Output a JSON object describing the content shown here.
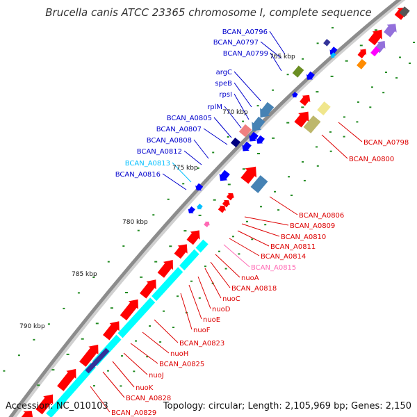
{
  "title": "Brucella canis ATCC 23365 chromosome I, complete sequence",
  "footer": {
    "accession": "Accession: NC_010103",
    "summary": "Topology: circular; Length: 2,105,969 bp; Genes: 2,150"
  },
  "scale_labels": [
    "765 kbp",
    "770 kbp",
    "775 kbp",
    "780 kbp",
    "785 kbp",
    "790 kbp"
  ],
  "colors": {
    "backbone": "#8c8c8c",
    "forward_gene": "#ff0000",
    "reverse_gene": "#0000ff",
    "cds_reverse": "#4682b4",
    "cds_forward": "#00ffff",
    "rna": "#6b8e23",
    "highlight_label": "#00bfff",
    "pink_label": "#ff69b4"
  },
  "left_labels": [
    {
      "text": "BCAN_A0796",
      "color": "#0000cc"
    },
    {
      "text": "BCAN_A0797",
      "color": "#0000cc"
    },
    {
      "text": "BCAN_A0799",
      "color": "#0000cc"
    },
    {
      "text": "argC",
      "color": "#0000cc"
    },
    {
      "text": "speB",
      "color": "#0000cc"
    },
    {
      "text": "rpsI",
      "color": "#0000cc"
    },
    {
      "text": "rplM",
      "color": "#0000cc"
    },
    {
      "text": "BCAN_A0805",
      "color": "#0000cc"
    },
    {
      "text": "BCAN_A0807",
      "color": "#0000cc"
    },
    {
      "text": "BCAN_A0808",
      "color": "#0000cc"
    },
    {
      "text": "BCAN_A0812",
      "color": "#0000cc"
    },
    {
      "text": "BCAN_A0813",
      "color": "#00bfff"
    },
    {
      "text": "BCAN_A0816",
      "color": "#0000cc"
    }
  ],
  "right_labels": [
    {
      "text": "BCAN_A0798",
      "color": "#dd0000"
    },
    {
      "text": "BCAN_A0800",
      "color": "#dd0000"
    },
    {
      "text": "BCAN_A0806",
      "color": "#dd0000"
    },
    {
      "text": "BCAN_A0809",
      "color": "#dd0000"
    },
    {
      "text": "BCAN_A0810",
      "color": "#dd0000"
    },
    {
      "text": "BCAN_A0811",
      "color": "#dd0000"
    },
    {
      "text": "BCAN_A0814",
      "color": "#dd0000"
    },
    {
      "text": "BCAN_A0815",
      "color": "#ff69b4"
    },
    {
      "text": "nuoA",
      "color": "#dd0000"
    },
    {
      "text": "BCAN_A0818",
      "color": "#dd0000"
    },
    {
      "text": "nuoC",
      "color": "#dd0000"
    },
    {
      "text": "nuoD",
      "color": "#dd0000"
    },
    {
      "text": "nuoE",
      "color": "#dd0000"
    },
    {
      "text": "nuoF",
      "color": "#dd0000"
    },
    {
      "text": "BCAN_A0823",
      "color": "#dd0000"
    },
    {
      "text": "nuoH",
      "color": "#dd0000"
    },
    {
      "text": "BCAN_A0825",
      "color": "#dd0000"
    },
    {
      "text": "nuoJ",
      "color": "#dd0000"
    },
    {
      "text": "nuoK",
      "color": "#dd0000"
    },
    {
      "text": "BCAN_A0828",
      "color": "#dd0000"
    },
    {
      "text": "BCAN_A0829",
      "color": "#dd0000"
    }
  ]
}
